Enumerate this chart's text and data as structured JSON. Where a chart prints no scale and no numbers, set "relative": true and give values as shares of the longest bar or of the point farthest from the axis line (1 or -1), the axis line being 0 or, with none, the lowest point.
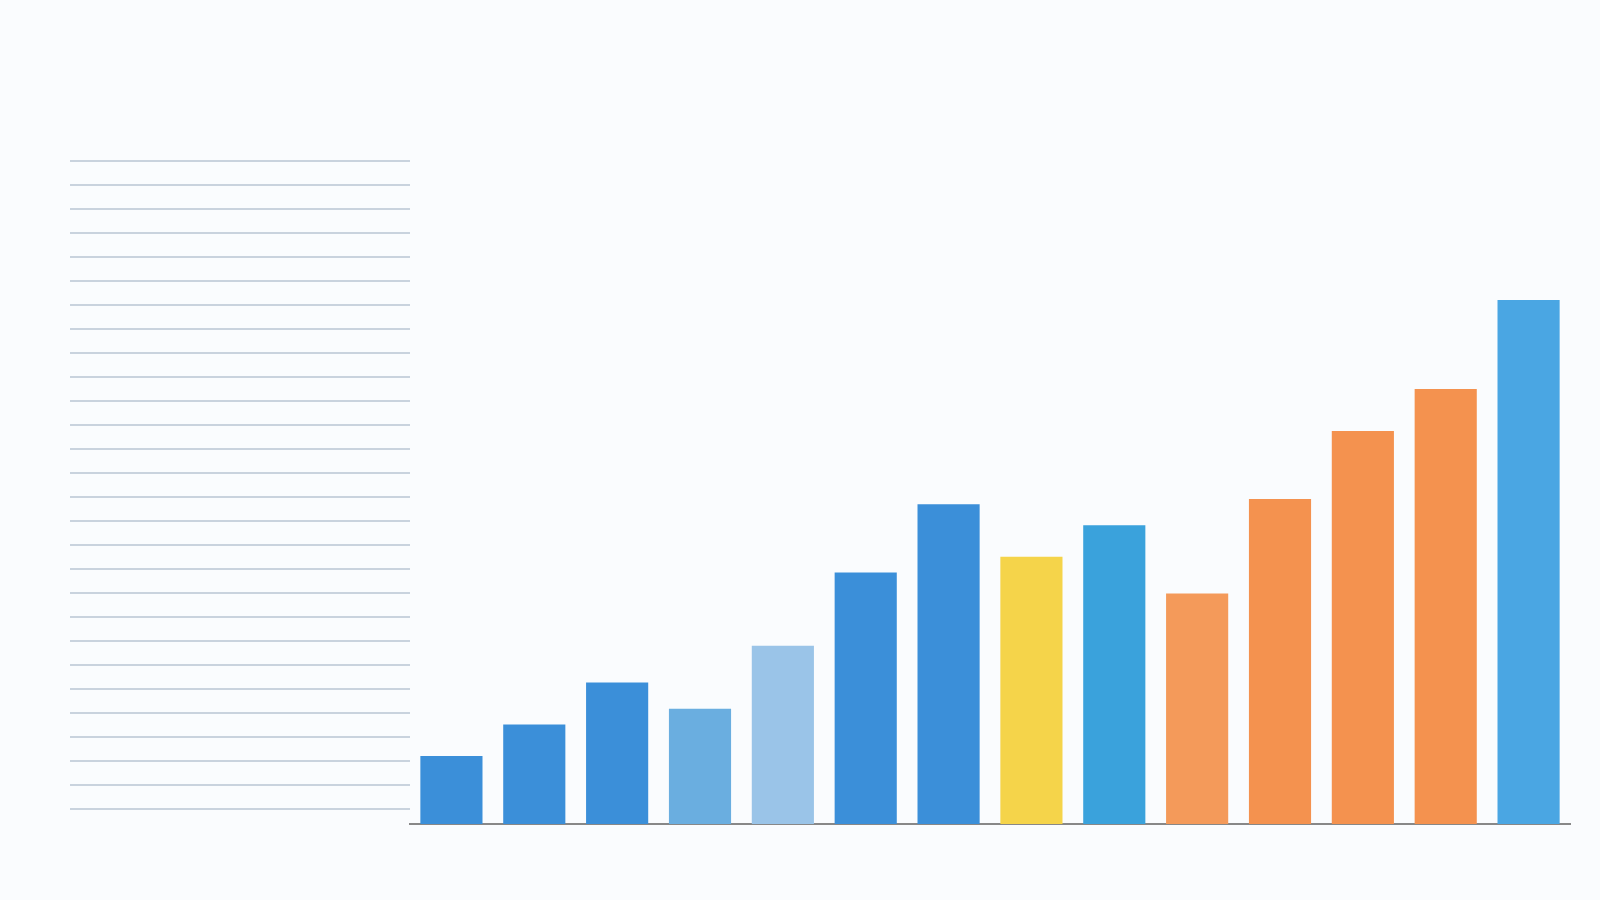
{
  "chart_data": {
    "type": "bar",
    "relative": true,
    "categories": [
      null,
      null,
      null,
      null,
      null,
      null,
      null,
      null,
      null,
      null,
      null,
      null,
      null,
      null
    ],
    "values": [
      0.13,
      0.19,
      0.27,
      0.22,
      0.34,
      0.48,
      0.61,
      0.51,
      0.57,
      0.44,
      0.62,
      0.75,
      0.83,
      1
    ],
    "colors": [
      "#3b8fd9",
      "#3b8fd9",
      "#3b8fd9",
      "#6aaee0",
      "#9ac4e8",
      "#3b8fd9",
      "#3b8fd9",
      "#f5d44a",
      "#3aa2dc",
      "#f49a5a",
      "#f4924f",
      "#f4924f",
      "#f4924f",
      "#4aa6e3"
    ]
  }
}
